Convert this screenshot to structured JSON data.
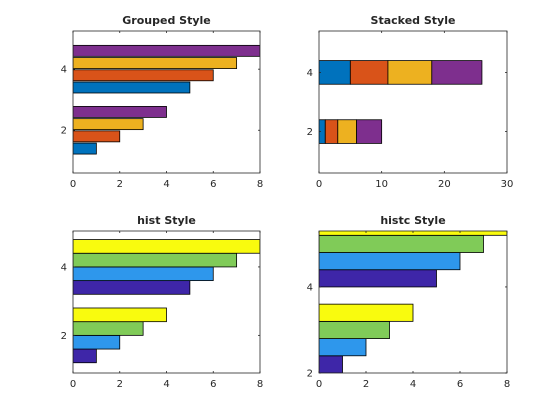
{
  "chart_data": [
    {
      "type": "bar",
      "orientation": "horizontal",
      "style": "grouped",
      "title": "Grouped Style",
      "categories": [
        2,
        4
      ],
      "series": [
        {
          "values": [
            1,
            5
          ],
          "color": "#0072BD"
        },
        {
          "values": [
            2,
            6
          ],
          "color": "#D95319"
        },
        {
          "values": [
            3,
            7
          ],
          "color": "#EDB120"
        },
        {
          "values": [
            4,
            8
          ],
          "color": "#7E2F8E"
        }
      ],
      "xlim": [
        0,
        8
      ],
      "ylim": [
        0.6,
        5.25
      ],
      "xticks": [
        0,
        2,
        4,
        6,
        8
      ],
      "yticks": [
        2,
        4
      ]
    },
    {
      "type": "bar",
      "orientation": "horizontal",
      "style": "stacked",
      "title": "Stacked Style",
      "categories": [
        2,
        4
      ],
      "series": [
        {
          "values": [
            1,
            5
          ],
          "color": "#0072BD"
        },
        {
          "values": [
            2,
            6
          ],
          "color": "#D95319"
        },
        {
          "values": [
            3,
            7
          ],
          "color": "#EDB120"
        },
        {
          "values": [
            4,
            8
          ],
          "color": "#7E2F8E"
        }
      ],
      "xlim": [
        0,
        30
      ],
      "ylim": [
        0.6,
        5.4
      ],
      "xticks": [
        0,
        10,
        20,
        30
      ],
      "yticks": [
        2,
        4
      ]
    },
    {
      "type": "bar",
      "orientation": "horizontal",
      "style": "hist",
      "title": "hist Style",
      "categories": [
        2,
        4
      ],
      "series": [
        {
          "values": [
            1,
            5
          ],
          "color": "#3E26A8"
        },
        {
          "values": [
            2,
            6
          ],
          "color": "#2E97EC"
        },
        {
          "values": [
            3,
            7
          ],
          "color": "#80CB58"
        },
        {
          "values": [
            4,
            8
          ],
          "color": "#F9FB0E"
        }
      ],
      "xlim": [
        0,
        8
      ],
      "ylim": [
        0.9,
        5.05
      ],
      "xticks": [
        0,
        2,
        4,
        6,
        8
      ],
      "yticks": [
        2,
        4
      ]
    },
    {
      "type": "bar",
      "orientation": "horizontal",
      "style": "histc",
      "title": "histc Style",
      "categories": [
        2,
        4
      ],
      "series": [
        {
          "values": [
            1,
            5
          ],
          "color": "#3E26A8"
        },
        {
          "values": [
            2,
            6
          ],
          "color": "#2E97EC"
        },
        {
          "values": [
            3,
            7
          ],
          "color": "#80CB58"
        },
        {
          "values": [
            4,
            8
          ],
          "color": "#F9FB0E"
        }
      ],
      "xlim": [
        0,
        8
      ],
      "ylim": [
        2,
        5.3
      ],
      "xticks": [
        0,
        2,
        4,
        6,
        8
      ],
      "yticks": [
        2,
        4
      ]
    }
  ]
}
